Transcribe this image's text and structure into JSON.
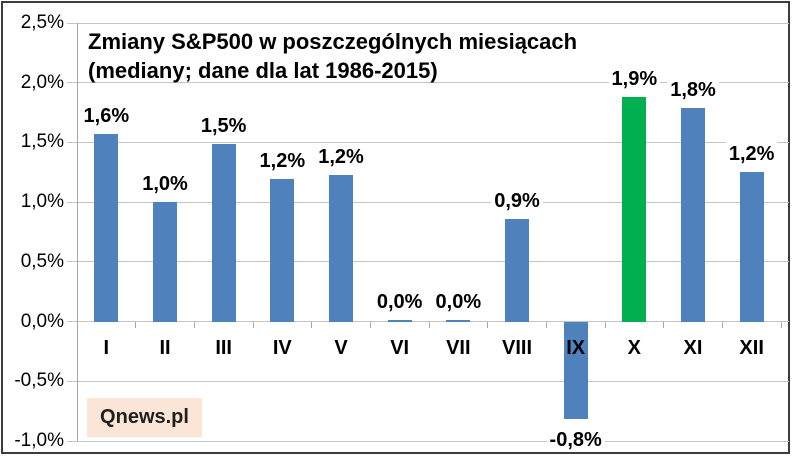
{
  "title": {
    "line1": "Zmiany S&P500 w poszczególnych miesiącach",
    "line2": "(mediany; dane dla lat 1986-2015)"
  },
  "watermark": {
    "text": "Qnews.pl",
    "background": "#FBE5D6",
    "text_color": "#1F1F1F"
  },
  "colors": {
    "bar_default": "#4F81BD",
    "bar_highlight": "#00B050",
    "gridline": "#C4C4C4",
    "axis": "#A6A6A6",
    "frame_border": "#3C3C3C",
    "label_text": "#000000"
  },
  "chart_data": {
    "type": "bar",
    "title": "Zmiany S&P500 w poszczególnych miesiącach (mediany; dane dla lat 1986-2015)",
    "categories": [
      "I",
      "II",
      "III",
      "IV",
      "V",
      "VI",
      "VII",
      "VIII",
      "IX",
      "X",
      "XI",
      "XII"
    ],
    "values": [
      1.57,
      1.0,
      1.49,
      1.19,
      1.23,
      0.01,
      0.01,
      0.86,
      -0.82,
      1.88,
      1.79,
      1.25
    ],
    "data_labels": [
      "1,6%",
      "1,0%",
      "1,5%",
      "1,2%",
      "1,2%",
      "0,0%",
      "0,0%",
      "0,9%",
      "-0,8%",
      "1,9%",
      "1,8%",
      "1,2%"
    ],
    "highlight_index": 9,
    "highlight_category": "X",
    "y_axis": {
      "tick_labels": [
        "2,5%",
        "2,0%",
        "1,5%",
        "1,0%",
        "0,5%",
        "0,0%",
        "-0,5%",
        "-1,0%"
      ],
      "tick_values": [
        2.5,
        2.0,
        1.5,
        1.0,
        0.5,
        0.0,
        -0.5,
        -1.0
      ],
      "min": -1.0,
      "max": 2.5,
      "grid": true
    },
    "legend": "none",
    "xlabel": "",
    "ylabel": ""
  }
}
